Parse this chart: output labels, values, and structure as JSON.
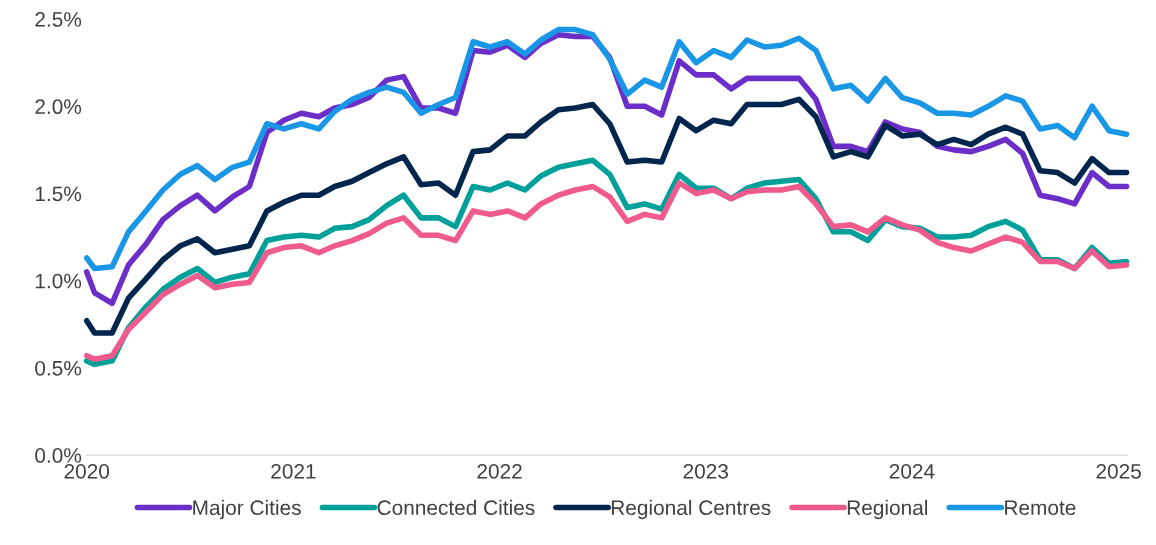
{
  "chart_data": {
    "type": "line",
    "x": [
      "2020-01-01",
      "2020-01-15",
      "2020-02-15",
      "2020-03-15",
      "2020-04-15",
      "2020-05-15",
      "2020-06-15",
      "2020-07-15",
      "2020-08-15",
      "2020-09-15",
      "2020-10-15",
      "2020-11-15",
      "2020-12-15",
      "2021-01-15",
      "2021-02-15",
      "2021-03-15",
      "2021-04-15",
      "2021-05-15",
      "2021-06-15",
      "2021-07-15",
      "2021-08-15",
      "2021-09-15",
      "2021-10-15",
      "2021-11-15",
      "2021-12-15",
      "2022-01-15",
      "2022-02-15",
      "2022-03-15",
      "2022-04-15",
      "2022-05-15",
      "2022-06-15",
      "2022-07-15",
      "2022-08-15",
      "2022-09-15",
      "2022-10-15",
      "2022-11-15",
      "2022-12-15",
      "2023-01-15",
      "2023-02-15",
      "2023-03-15",
      "2023-04-15",
      "2023-05-15",
      "2023-06-15",
      "2023-07-15",
      "2023-08-15",
      "2023-09-15",
      "2023-10-15",
      "2023-11-15",
      "2023-12-15",
      "2024-01-15",
      "2024-02-15",
      "2024-03-15",
      "2024-04-15",
      "2024-05-15",
      "2024-06-15",
      "2024-07-15",
      "2024-08-15",
      "2024-09-15",
      "2024-10-15",
      "2024-11-15",
      "2024-12-15",
      "2025-01-15"
    ],
    "series": [
      {
        "name": "Major Cities",
        "color": "#6c2ec9",
        "values": [
          1.05,
          0.93,
          0.87,
          1.09,
          1.21,
          1.35,
          1.43,
          1.49,
          1.4,
          1.48,
          1.54,
          1.85,
          1.92,
          1.96,
          1.94,
          1.99,
          2.01,
          2.05,
          2.15,
          2.17,
          1.99,
          1.99,
          1.96,
          2.32,
          2.31,
          2.35,
          2.28,
          2.36,
          2.41,
          2.4,
          2.4,
          2.28,
          2.0,
          2.0,
          1.95,
          2.26,
          2.18,
          2.18,
          2.1,
          2.16,
          2.16,
          2.16,
          2.16,
          2.04,
          1.77,
          1.77,
          1.74,
          1.91,
          1.87,
          1.85,
          1.77,
          1.75,
          1.74,
          1.77,
          1.81,
          1.73,
          1.49,
          1.47,
          1.44,
          1.62,
          1.54,
          1.54
        ]
      },
      {
        "name": "Connected Cities",
        "color": "#00a09a",
        "values": [
          0.54,
          0.52,
          0.54,
          0.73,
          0.85,
          0.95,
          1.02,
          1.07,
          0.99,
          1.02,
          1.04,
          1.23,
          1.25,
          1.26,
          1.25,
          1.3,
          1.31,
          1.35,
          1.43,
          1.49,
          1.36,
          1.36,
          1.31,
          1.54,
          1.52,
          1.56,
          1.52,
          1.6,
          1.65,
          1.67,
          1.69,
          1.61,
          1.42,
          1.44,
          1.41,
          1.61,
          1.53,
          1.53,
          1.47,
          1.53,
          1.56,
          1.57,
          1.58,
          1.47,
          1.28,
          1.28,
          1.23,
          1.35,
          1.31,
          1.3,
          1.25,
          1.25,
          1.26,
          1.31,
          1.34,
          1.29,
          1.12,
          1.12,
          1.07,
          1.19,
          1.1,
          1.11
        ]
      },
      {
        "name": "Regional Centres",
        "color": "#00264d",
        "values": [
          0.77,
          0.7,
          0.7,
          0.9,
          1.01,
          1.12,
          1.2,
          1.24,
          1.16,
          1.18,
          1.2,
          1.4,
          1.45,
          1.49,
          1.49,
          1.54,
          1.57,
          1.62,
          1.67,
          1.71,
          1.55,
          1.56,
          1.49,
          1.74,
          1.75,
          1.83,
          1.83,
          1.91,
          1.98,
          1.99,
          2.01,
          1.9,
          1.68,
          1.69,
          1.68,
          1.93,
          1.86,
          1.92,
          1.9,
          2.01,
          2.01,
          2.01,
          2.04,
          1.94,
          1.71,
          1.74,
          1.71,
          1.89,
          1.83,
          1.84,
          1.78,
          1.81,
          1.78,
          1.84,
          1.88,
          1.84,
          1.63,
          1.62,
          1.56,
          1.7,
          1.62,
          1.62
        ]
      },
      {
        "name": "Regional",
        "color": "#f05a8c",
        "values": [
          0.57,
          0.55,
          0.57,
          0.72,
          0.82,
          0.92,
          0.98,
          1.03,
          0.96,
          0.98,
          0.99,
          1.16,
          1.19,
          1.2,
          1.16,
          1.2,
          1.23,
          1.27,
          1.33,
          1.36,
          1.26,
          1.26,
          1.23,
          1.4,
          1.38,
          1.4,
          1.36,
          1.44,
          1.49,
          1.52,
          1.54,
          1.48,
          1.34,
          1.38,
          1.36,
          1.56,
          1.5,
          1.52,
          1.47,
          1.51,
          1.52,
          1.52,
          1.54,
          1.44,
          1.31,
          1.32,
          1.28,
          1.36,
          1.32,
          1.29,
          1.22,
          1.19,
          1.17,
          1.21,
          1.25,
          1.22,
          1.11,
          1.11,
          1.07,
          1.17,
          1.08,
          1.09
        ]
      },
      {
        "name": "Remote",
        "color": "#1a96e6",
        "values": [
          1.13,
          1.07,
          1.08,
          1.28,
          1.4,
          1.52,
          1.61,
          1.66,
          1.58,
          1.65,
          1.68,
          1.9,
          1.87,
          1.9,
          1.87,
          1.97,
          2.04,
          2.08,
          2.11,
          2.08,
          1.96,
          2.01,
          2.05,
          2.37,
          2.34,
          2.37,
          2.3,
          2.38,
          2.44,
          2.44,
          2.41,
          2.27,
          2.07,
          2.15,
          2.11,
          2.37,
          2.25,
          2.32,
          2.28,
          2.38,
          2.34,
          2.35,
          2.39,
          2.32,
          2.1,
          2.12,
          2.03,
          2.16,
          2.05,
          2.02,
          1.96,
          1.96,
          1.95,
          2.0,
          2.06,
          2.03,
          1.87,
          1.89,
          1.82,
          2.0,
          1.86,
          1.84
        ]
      }
    ],
    "xlim": [
      "2020-01-01",
      "2025-01-16"
    ],
    "xticks": [
      {
        "value": "2020-01-01",
        "label": "2020"
      },
      {
        "value": "2021-01-01",
        "label": "2021"
      },
      {
        "value": "2022-01-01",
        "label": "2022"
      },
      {
        "value": "2023-01-01",
        "label": "2023"
      },
      {
        "value": "2024-01-01",
        "label": "2024"
      },
      {
        "value": "2025-01-01",
        "label": "2025"
      }
    ],
    "ylim": [
      0,
      2.5
    ],
    "yticks": [
      {
        "value": 0,
        "label": "0.0%"
      },
      {
        "value": 0.5,
        "label": "0.5%"
      },
      {
        "value": 1,
        "label": "1.0%"
      },
      {
        "value": 1.5,
        "label": "1.5%"
      },
      {
        "value": 2,
        "label": "2.0%"
      },
      {
        "value": 2.5,
        "label": "2.5%"
      }
    ],
    "grid": false,
    "legend": "bottom",
    "line_style": "solid"
  }
}
